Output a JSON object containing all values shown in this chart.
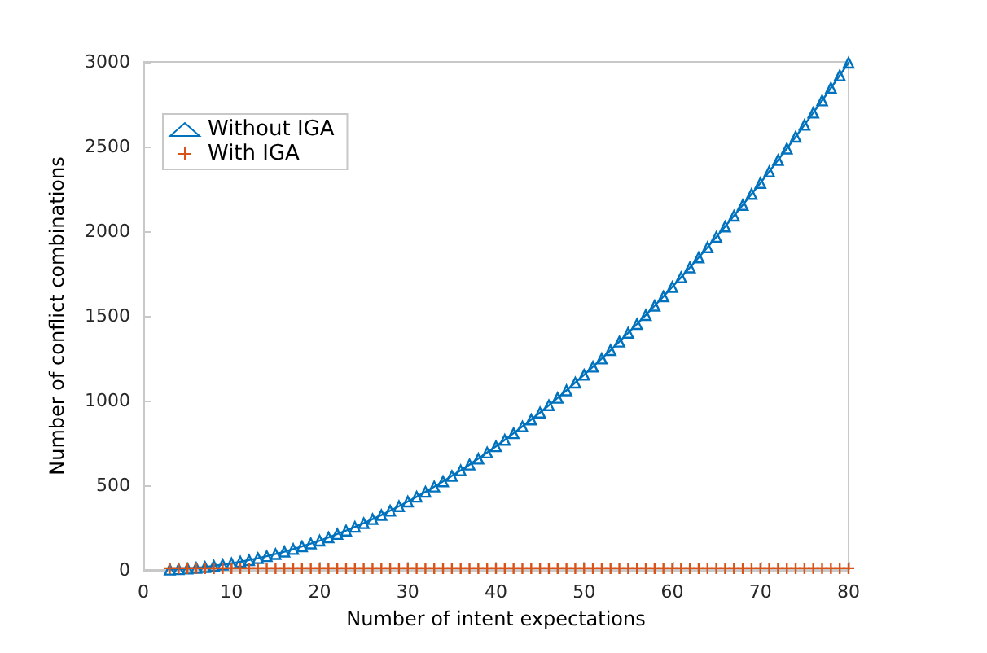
{
  "chart_data": {
    "type": "line",
    "xlabel": "Number of intent expectations",
    "ylabel": "Number of conflict combinations",
    "x": [
      3,
      4,
      5,
      6,
      7,
      8,
      9,
      10,
      11,
      12,
      13,
      14,
      15,
      16,
      17,
      18,
      19,
      20,
      21,
      22,
      23,
      24,
      25,
      26,
      27,
      28,
      29,
      30,
      31,
      32,
      33,
      34,
      35,
      36,
      37,
      38,
      39,
      40,
      41,
      42,
      43,
      44,
      45,
      46,
      47,
      48,
      49,
      50,
      51,
      52,
      53,
      54,
      55,
      56,
      57,
      58,
      59,
      60,
      61,
      62,
      63,
      64,
      65,
      66,
      67,
      68,
      69,
      70,
      71,
      72,
      73,
      74,
      75,
      76,
      77,
      78,
      79,
      80
    ],
    "series": [
      {
        "name": "Without IGA",
        "color": "#0072bd",
        "marker": "triangle",
        "values": [
          2,
          4,
          8,
          12,
          17,
          24,
          31,
          39,
          48,
          58,
          69,
          81,
          94,
          108,
          123,
          139,
          156,
          173,
          192,
          212,
          232,
          254,
          276,
          300,
          324,
          350,
          376,
          404,
          432,
          461,
          492,
          523,
          555,
          588,
          622,
          657,
          693,
          730,
          768,
          807,
          847,
          888,
          929,
          972,
          1016,
          1060,
          1106,
          1152,
          1200,
          1248,
          1298,
          1348,
          1400,
          1452,
          1505,
          1560,
          1615,
          1671,
          1728,
          1786,
          1845,
          1905,
          1966,
          2028,
          2091,
          2155,
          2220,
          2285,
          2352,
          2420,
          2488,
          2558,
          2628,
          2700,
          2772,
          2846,
          2920,
          2995
        ]
      },
      {
        "name": "With IGA",
        "color": "#d95319",
        "marker": "cross",
        "values": [
          10,
          10,
          10,
          10,
          10,
          10,
          10,
          10,
          10,
          10,
          10,
          10,
          10,
          10,
          10,
          10,
          10,
          10,
          10,
          10,
          10,
          10,
          10,
          10,
          10,
          10,
          10,
          10,
          10,
          10,
          10,
          10,
          10,
          10,
          10,
          10,
          10,
          10,
          10,
          10,
          10,
          10,
          10,
          10,
          10,
          10,
          10,
          10,
          10,
          10,
          10,
          10,
          10,
          10,
          10,
          10,
          10,
          10,
          10,
          10,
          10,
          10,
          10,
          10,
          10,
          10,
          10,
          10,
          10,
          10,
          10,
          10,
          10,
          10,
          10,
          10,
          10,
          10
        ]
      }
    ],
    "xlim": [
      0,
      80
    ],
    "xticks": [
      0,
      10,
      20,
      30,
      40,
      50,
      60,
      70,
      80
    ],
    "ylim": [
      0,
      3000
    ],
    "yticks": [
      0,
      500,
      1000,
      1500,
      2000,
      2500,
      3000
    ],
    "grid": false,
    "legend": "top left",
    "line_style": "solid"
  }
}
